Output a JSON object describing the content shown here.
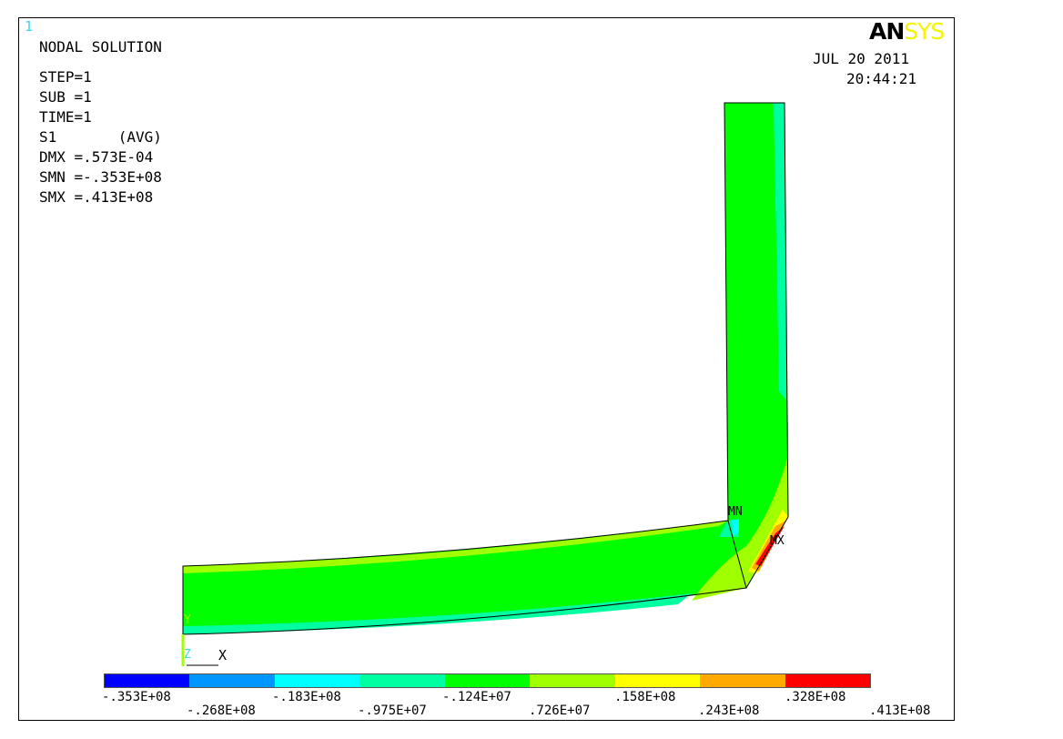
{
  "window_number": "1",
  "logo": {
    "part1": "AN",
    "part2": "SYS"
  },
  "header": {
    "title": "NODAL SOLUTION",
    "lines": [
      "STEP=1",
      "SUB =1",
      "TIME=1",
      "S1       (AVG)",
      "DMX =.573E-04",
      "SMN =-.353E+08",
      "SMX =.413E+08"
    ]
  },
  "date": "JUL 20 2011",
  "time": "20:44:21",
  "markers": {
    "min": "MN",
    "max": "MX"
  },
  "triad": {
    "y": "Y",
    "z": "Z",
    "x": "X"
  },
  "legend": {
    "colors": [
      "#0000ff",
      "#0096ff",
      "#00ffff",
      "#00ffa0",
      "#00ff00",
      "#a0ff00",
      "#ffff00",
      "#ffaa00",
      "#ff0000"
    ],
    "labels_top": [
      "-.353E+08",
      "-.183E+08",
      "-.124E+07",
      ".158E+08",
      ".328E+08"
    ],
    "labels_bottom": [
      "-.268E+08",
      "-.975E+07",
      ".726E+07",
      ".243E+08",
      ".413E+08"
    ]
  }
}
